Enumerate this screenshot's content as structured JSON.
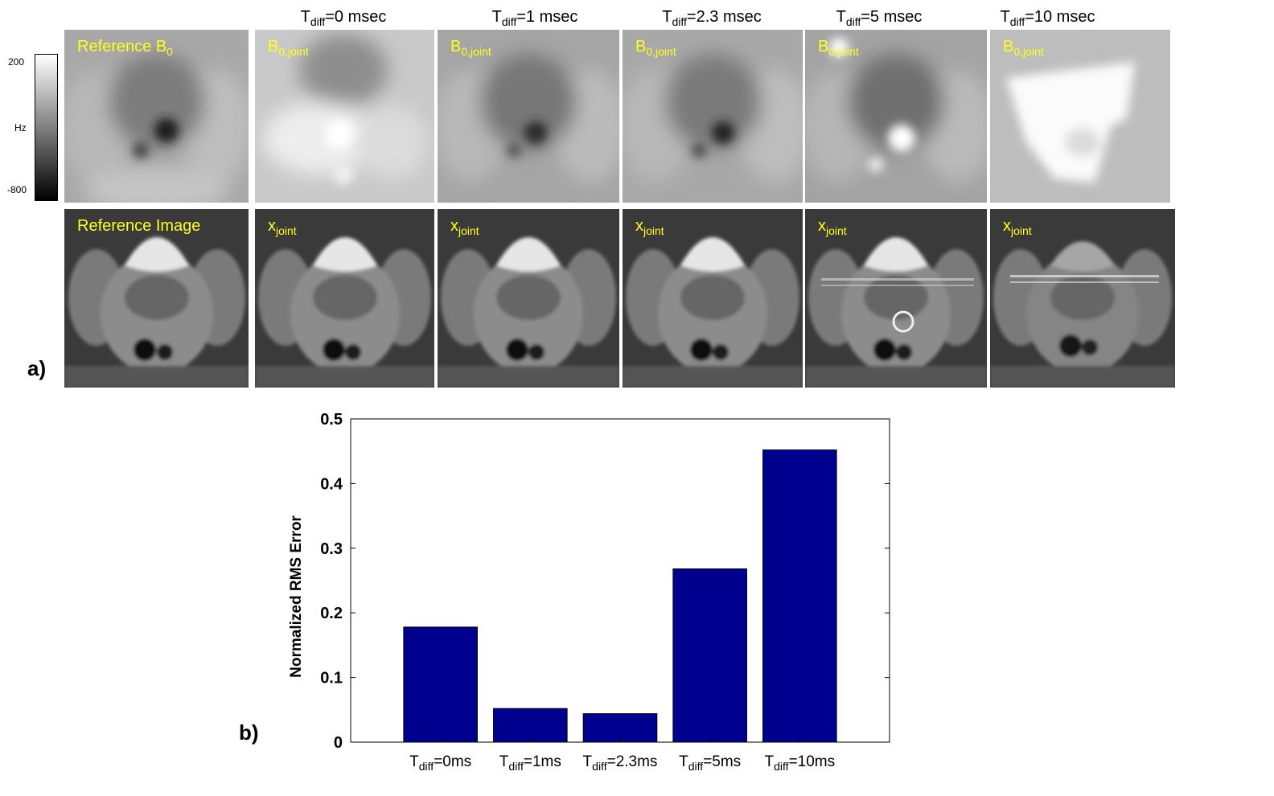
{
  "panel_a": {
    "label": "a)",
    "columns": [
      {
        "title_base": "T",
        "title_sub": "diff",
        "title_rest": "=0 msec"
      },
      {
        "title_base": "T",
        "title_sub": "diff",
        "title_rest": "=1 msec"
      },
      {
        "title_base": "T",
        "title_sub": "diff",
        "title_rest": "=2.3 msec"
      },
      {
        "title_base": "T",
        "title_sub": "diff",
        "title_rest": "=5 msec"
      },
      {
        "title_base": "T",
        "title_sub": "diff",
        "title_rest": "=10 msec"
      }
    ],
    "colorbar": {
      "max": "200",
      "unit": "Hz",
      "min": "-800"
    },
    "row1": [
      {
        "base": "Reference B",
        "sub": "0"
      },
      {
        "base": "B",
        "sub": "0,joint"
      },
      {
        "base": "B",
        "sub": "0,joint"
      },
      {
        "base": "B",
        "sub": "0,joint"
      },
      {
        "base": "B",
        "sub": "0,joint"
      },
      {
        "base": "B",
        "sub": "0,joint"
      }
    ],
    "row2": [
      {
        "base": "Reference Image",
        "sub": ""
      },
      {
        "base": "x",
        "sub": "joint"
      },
      {
        "base": "x",
        "sub": "joint"
      },
      {
        "base": "x",
        "sub": "joint"
      },
      {
        "base": "x",
        "sub": "joint"
      },
      {
        "base": "x",
        "sub": "joint"
      }
    ],
    "label_color": "#ffff1e"
  },
  "panel_b": {
    "label": "b)",
    "chart_data": {
      "type": "bar",
      "categories": [
        {
          "base": "T",
          "sub": "diff",
          "rest": "=0ms"
        },
        {
          "base": "T",
          "sub": "diff",
          "rest": "=1ms"
        },
        {
          "base": "T",
          "sub": "diff",
          "rest": "=2.3ms"
        },
        {
          "base": "T",
          "sub": "diff",
          "rest": "=5ms"
        },
        {
          "base": "T",
          "sub": "diff",
          "rest": "=10ms"
        }
      ],
      "values": [
        0.178,
        0.052,
        0.044,
        0.268,
        0.452
      ],
      "ylabel": "Normalized RMS Error",
      "ylim": [
        0,
        0.5
      ],
      "yticks": [
        "0",
        "0.1",
        "0.2",
        "0.3",
        "0.4",
        "0.5"
      ],
      "ytick_values": [
        0,
        0.1,
        0.2,
        0.3,
        0.4,
        0.5
      ],
      "bar_color": "#00008f",
      "grid": false
    }
  }
}
